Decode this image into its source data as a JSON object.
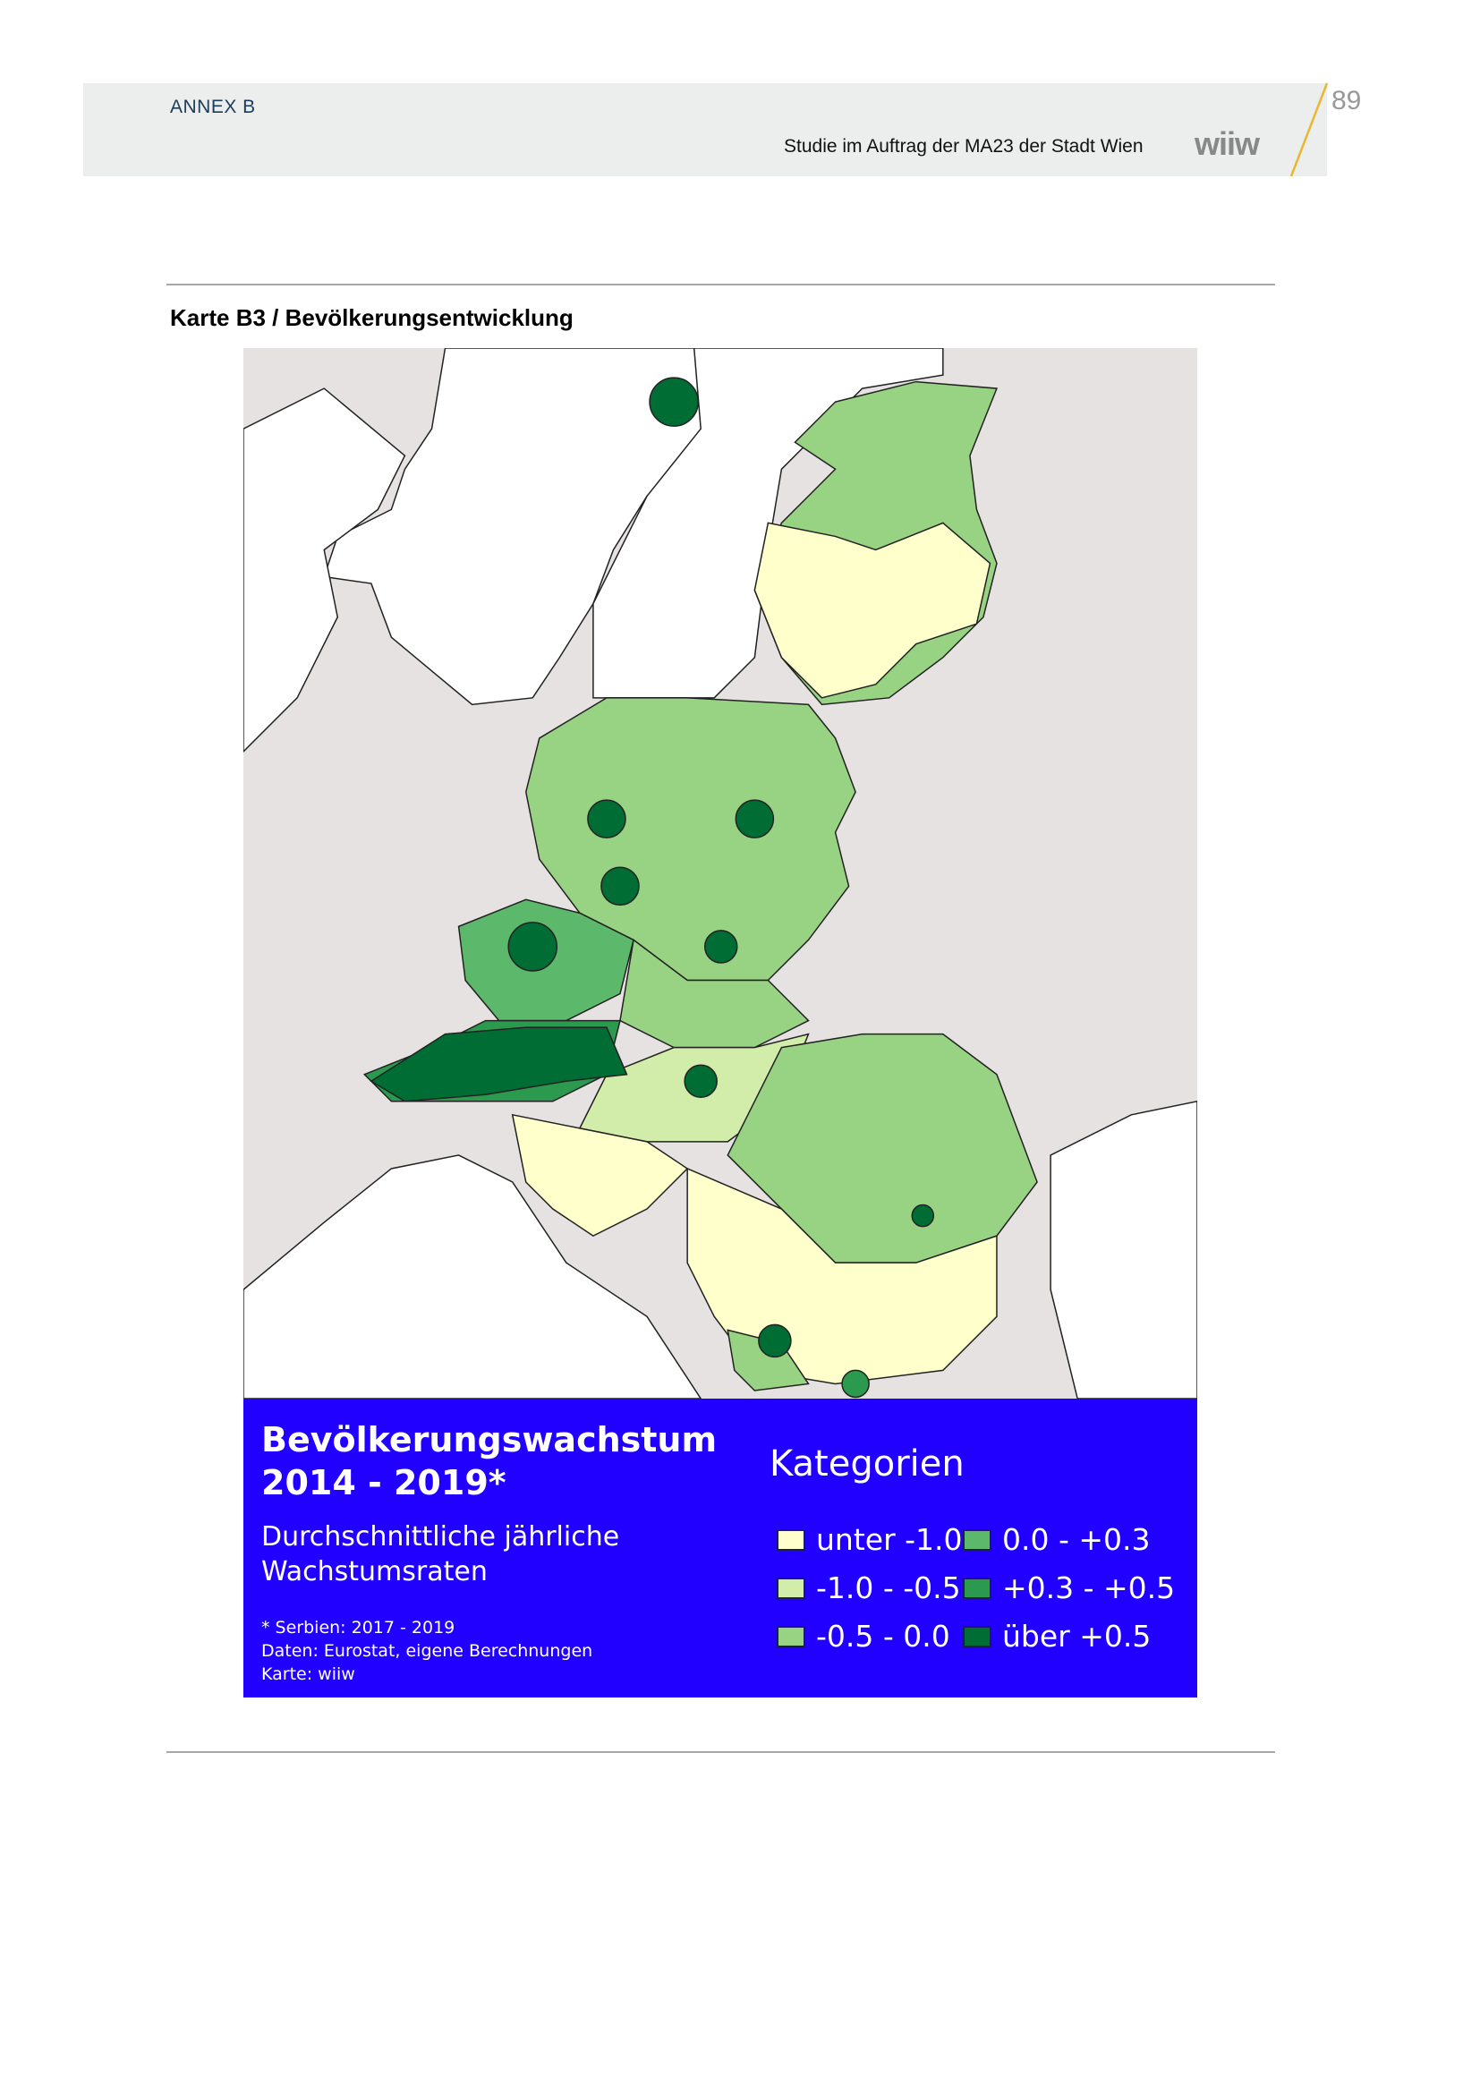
{
  "header": {
    "section": "ANNEX B",
    "study": "Studie im Auftrag der MA23 der Stadt Wien",
    "logo": "wiiw",
    "page_number": "89",
    "accent_color": "#e8b830"
  },
  "figure": {
    "title": "Karte B3 / Bevölkerungsentwicklung"
  },
  "legend": {
    "heading_line1": "Bevölkerungswachstum",
    "heading_line2": "2014 - 2019*",
    "subtitle_line1": "Durchschnittliche jährliche",
    "subtitle_line2": "Wachstumsraten",
    "note1": "* Serbien: 2017 - 2019",
    "note2": "Daten: Eurostat, eigene Berechnungen",
    "note3": "Karte: wiiw",
    "categories_title": "Kategorien",
    "background_color": "#2200ff",
    "items": [
      {
        "label": "unter -1.0",
        "color": "#ffffcc"
      },
      {
        "label": "-1.0 - -0.5",
        "color": "#d2ecaa"
      },
      {
        "label": "-0.5 - 0.0",
        "color": "#98d383"
      },
      {
        "label": "0.0 - +0.3",
        "color": "#5cb96b"
      },
      {
        "label": "+0.3 - +0.5",
        "color": "#2b9a4f"
      },
      {
        "label": "über +0.5",
        "color": "#006d35"
      }
    ]
  }
}
